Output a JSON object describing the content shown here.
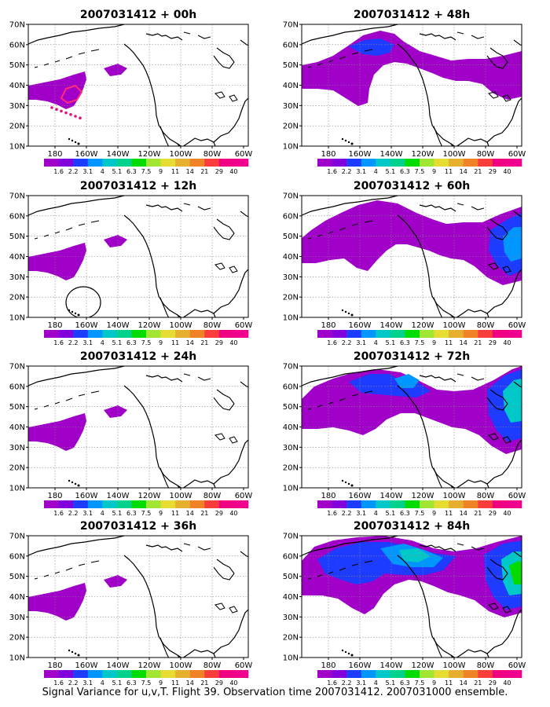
{
  "caption": "Signal Variance for u,v,T. Flight 39. Observation time 2007031412. 2007031000 ensemble.",
  "lat_ticks": [
    "70N",
    "60N",
    "50N",
    "40N",
    "30N",
    "20N",
    "10N"
  ],
  "lon_ticks": [
    "180",
    "160W",
    "140W",
    "120W",
    "100W",
    "80W",
    "60W"
  ],
  "colorbar": {
    "labels": [
      "1.6",
      "2.2",
      "3.1",
      "4",
      "5.1",
      "6.3",
      "7.5",
      "9",
      "11",
      "14",
      "21",
      "29",
      "40"
    ],
    "colors": [
      "#a000c8",
      "#8200dc",
      "#1e3cff",
      "#0096ff",
      "#00c8c8",
      "#00d28c",
      "#00dc00",
      "#a0e632",
      "#e6dc32",
      "#e6af2d",
      "#f08228",
      "#fa3c3c",
      "#f00082",
      "#f0008c"
    ]
  },
  "panels": [
    {
      "title": "2007031412 + 00h",
      "level": 1
    },
    {
      "title": "2007031412 + 12h",
      "level": 1
    },
    {
      "title": "2007031412 + 24h",
      "level": 1
    },
    {
      "title": "2007031412 + 36h",
      "level": 1
    },
    {
      "title": "2007031412 + 48h",
      "level": 2
    },
    {
      "title": "2007031412 + 60h",
      "level": 3
    },
    {
      "title": "2007031412 + 72h",
      "level": 4
    },
    {
      "title": "2007031412 + 84h",
      "level": 5
    }
  ]
}
